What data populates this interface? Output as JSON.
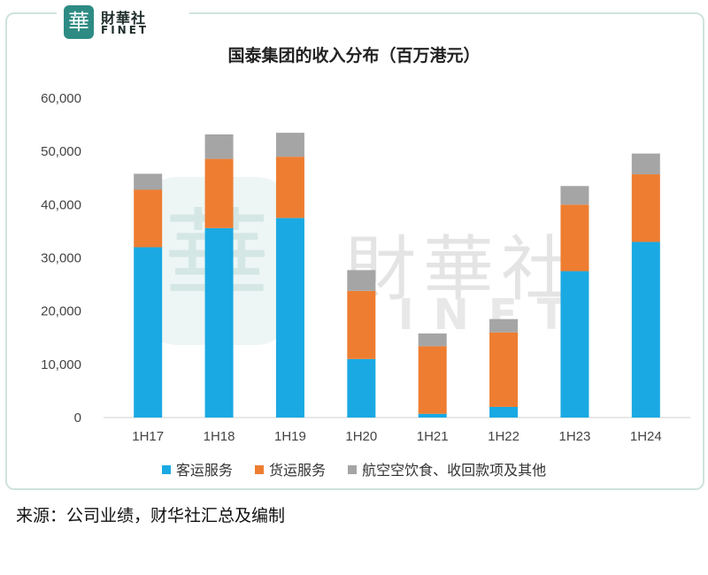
{
  "brand": {
    "badge_char": "華",
    "name_cn": "財華社",
    "name_en": "FINET"
  },
  "watermark": {
    "cn": "財華社",
    "en": "FINET"
  },
  "colors": {
    "passenger": "#1aa9e3",
    "cargo": "#ee7d31",
    "other": "#a5a5a5"
  },
  "chart_data": {
    "type": "bar",
    "stacked": true,
    "title": "国泰集团的收入分布（百万港元）",
    "categories": [
      "1H17",
      "1H18",
      "1H19",
      "1H20",
      "1H21",
      "1H22",
      "1H23",
      "1H24"
    ],
    "series": [
      {
        "name": "客运服务",
        "values": [
          32000,
          35600,
          37500,
          11000,
          700,
          2000,
          27500,
          33000
        ]
      },
      {
        "name": "货运服务",
        "values": [
          10800,
          13000,
          11500,
          12800,
          12700,
          14000,
          12500,
          12700
        ]
      },
      {
        "name": "航空空饮食、收回款项及其他",
        "values": [
          3000,
          4600,
          4500,
          3900,
          2400,
          2500,
          3500,
          3900
        ]
      }
    ],
    "ylim": [
      0,
      60000
    ],
    "yticks": [
      0,
      10000,
      20000,
      30000,
      40000,
      50000,
      60000
    ],
    "ytick_labels": [
      "0",
      "10,000",
      "20,000",
      "30,000",
      "40,000",
      "50,000",
      "60,000"
    ],
    "grid": false,
    "legend_position": "bottom"
  },
  "source_note": "来源：公司业绩，财华社汇总及编制"
}
